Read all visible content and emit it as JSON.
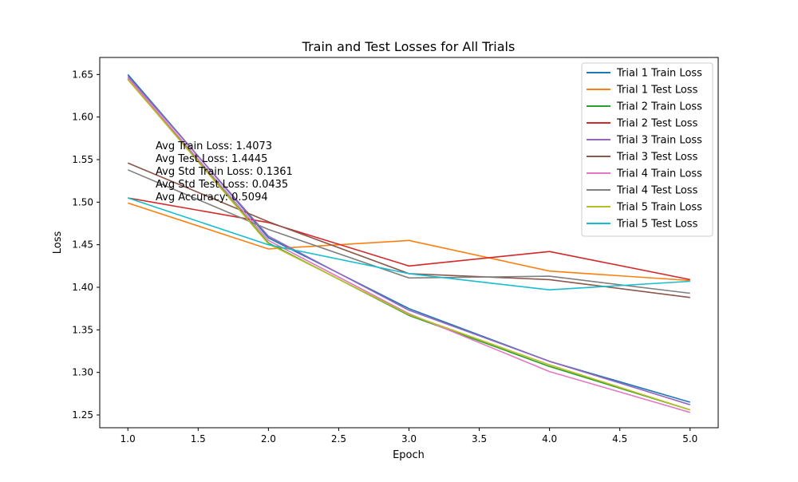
{
  "chart_data": {
    "type": "line",
    "title": "Train and Test Losses for All Trials",
    "xlabel": "Epoch",
    "ylabel": "Loss",
    "x": [
      1,
      2,
      3,
      4,
      5
    ],
    "xlim": [
      0.8,
      5.2
    ],
    "ylim": [
      1.235,
      1.67
    ],
    "xticks": [
      "1.0",
      "1.5",
      "2.0",
      "2.5",
      "3.0",
      "3.5",
      "4.0",
      "4.5",
      "5.0"
    ],
    "yticks": [
      "1.25",
      "1.30",
      "1.35",
      "1.40",
      "1.45",
      "1.50",
      "1.55",
      "1.60",
      "1.65"
    ],
    "grid": false,
    "legend_placement": "top-right",
    "series": [
      {
        "name": "Trial 1 Train Loss",
        "color": "#1f77b4",
        "values": [
          1.65,
          1.458,
          1.375,
          1.313,
          1.265
        ]
      },
      {
        "name": "Trial 1 Test Loss",
        "color": "#ff7f0e",
        "values": [
          1.499,
          1.445,
          1.455,
          1.419,
          1.408
        ]
      },
      {
        "name": "Trial 2 Train Loss",
        "color": "#2ca02c",
        "values": [
          1.645,
          1.452,
          1.367,
          1.307,
          1.256
        ]
      },
      {
        "name": "Trial 2 Test Loss",
        "color": "#d62728",
        "values": [
          1.505,
          1.476,
          1.425,
          1.442,
          1.409
        ]
      },
      {
        "name": "Trial 3 Train Loss",
        "color": "#9467bd",
        "values": [
          1.648,
          1.46,
          1.373,
          1.313,
          1.262
        ]
      },
      {
        "name": "Trial 3 Test Loss",
        "color": "#8c564b",
        "values": [
          1.546,
          1.477,
          1.416,
          1.409,
          1.388
        ]
      },
      {
        "name": "Trial 4 Train Loss",
        "color": "#e377c2",
        "values": [
          1.646,
          1.455,
          1.369,
          1.301,
          1.253
        ]
      },
      {
        "name": "Trial 4 Test Loss",
        "color": "#7f7f7f",
        "values": [
          1.538,
          1.468,
          1.411,
          1.413,
          1.393
        ]
      },
      {
        "name": "Trial 5 Train Loss",
        "color": "#bcbd22",
        "values": [
          1.644,
          1.451,
          1.368,
          1.309,
          1.256
        ]
      },
      {
        "name": "Trial 5 Test Loss",
        "color": "#17becf",
        "values": [
          1.505,
          1.45,
          1.416,
          1.397,
          1.407
        ]
      }
    ],
    "annotations": [
      "Avg Train Loss: 1.4073",
      "Avg Test Loss: 1.4445",
      "Avg Std Train Loss: 0.1361",
      "Avg Std Test Loss: 0.0435",
      "Avg Accuracy: 0.5094"
    ]
  }
}
